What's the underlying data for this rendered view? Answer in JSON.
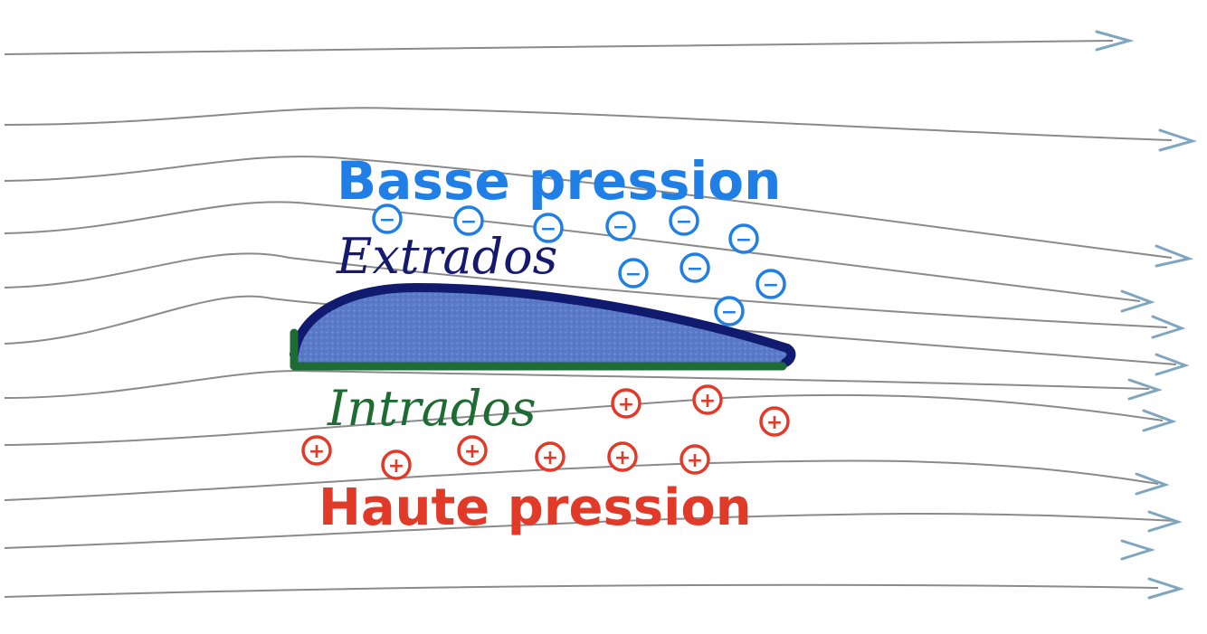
{
  "labels": {
    "low_pressure": "Basse pression",
    "upper_surface": "Extrados",
    "lower_surface": "Intrados",
    "high_pressure": "Haute pression"
  },
  "symbols": {
    "negative": "−",
    "positive": "+"
  },
  "colors": {
    "background": "#ffffff",
    "streamline": "#8a8a8a",
    "arrowhead": "#7fa6c0",
    "airfoil_fill": "#5a79c8",
    "extrados_line": "#101a6e",
    "intrados_line": "#1e6b34",
    "low_pressure": "#1f7fe6",
    "high_pressure": "#e23a28",
    "extrados_text": "#161a6e",
    "intrados_text": "#1e6b34"
  }
}
